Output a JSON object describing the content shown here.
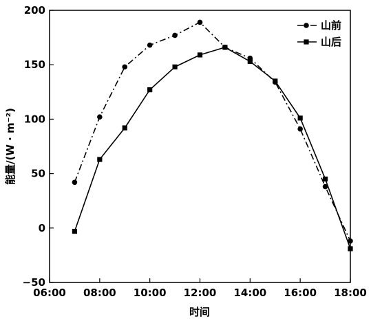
{
  "chart_data": {
    "type": "line",
    "title": "",
    "xlabel": "时间",
    "ylabel": "能量/(W · m⁻²)",
    "xlim": [
      6,
      18
    ],
    "ylim": [
      -50,
      200
    ],
    "x_ticks": [
      6,
      8,
      10,
      12,
      14,
      16,
      18
    ],
    "x_tick_labels": [
      "06:00",
      "08:00",
      "10:00",
      "12:00",
      "14:00",
      "16:00",
      "18:00"
    ],
    "y_ticks": [
      -50,
      0,
      50,
      100,
      150,
      200
    ],
    "y_tick_labels": [
      "−50",
      "0",
      "50",
      "100",
      "150",
      "200"
    ],
    "grid": false,
    "legend_position": "top-right",
    "series": [
      {
        "name": "山前",
        "marker": "circle",
        "line_style": "dash-dot",
        "color": "#000000",
        "x": [
          7,
          8,
          9,
          10,
          11,
          12,
          13,
          14,
          15,
          16,
          17,
          18
        ],
        "values": [
          42,
          102,
          148,
          168,
          177,
          189,
          166,
          156,
          134,
          91,
          38,
          -12
        ]
      },
      {
        "name": "山后",
        "marker": "square",
        "line_style": "solid",
        "color": "#000000",
        "x": [
          7,
          8,
          9,
          10,
          11,
          12,
          13,
          14,
          15,
          16,
          17,
          18
        ],
        "values": [
          -3,
          63,
          92,
          127,
          148,
          159,
          166,
          153,
          135,
          101,
          45,
          -19
        ]
      }
    ]
  }
}
